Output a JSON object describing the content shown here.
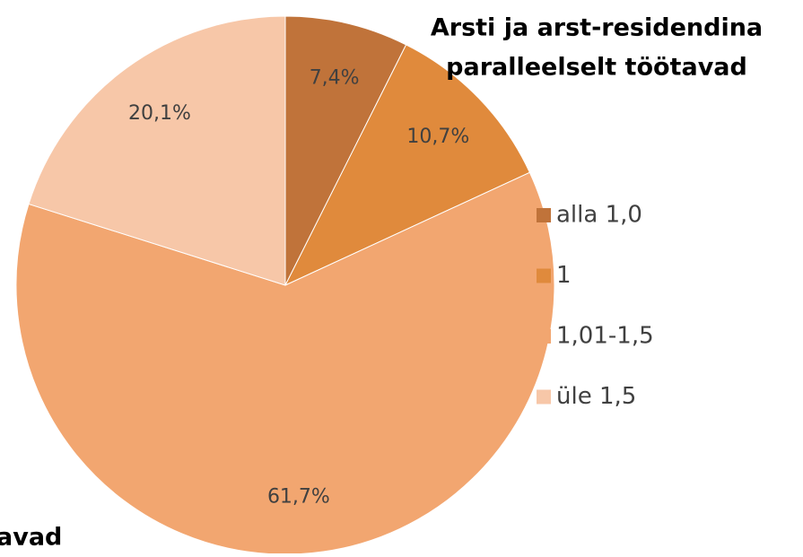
{
  "chart_data": {
    "type": "pie",
    "title": [
      "Arsti ja arst-residendina",
      "paralleelselt töötavad"
    ],
    "annotation": "avad",
    "categories": [
      "alla 1,0",
      "1",
      "1,01-1,5",
      "üle 1,5"
    ],
    "values": [
      7.4,
      10.7,
      61.7,
      20.1
    ],
    "value_labels": [
      "7,4%",
      "10,7%",
      "61,7%",
      "20,1%"
    ],
    "colors": [
      "#c0733a",
      "#e08a3c",
      "#f2a670",
      "#f7c7a8"
    ],
    "legend": "right"
  }
}
